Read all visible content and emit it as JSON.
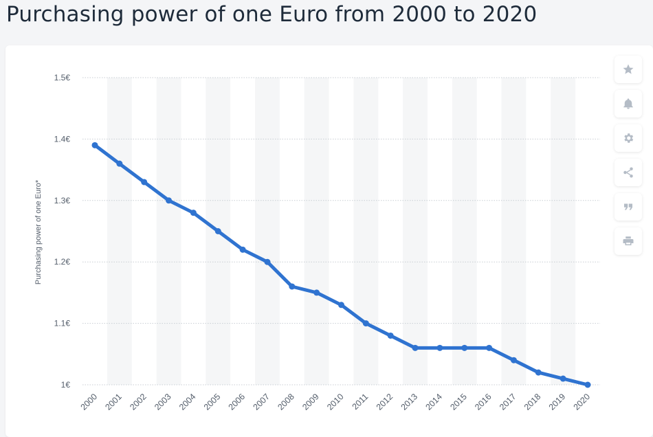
{
  "page": {
    "title": "Purchasing power of one Euro from 2000 to 2020"
  },
  "toolbar": {
    "buttons": [
      {
        "icon": "star-icon",
        "label": "Favorite"
      },
      {
        "icon": "bell-icon",
        "label": "Notification"
      },
      {
        "icon": "gear-icon",
        "label": "Settings"
      },
      {
        "icon": "share-icon",
        "label": "Share"
      },
      {
        "icon": "quote-icon",
        "label": "Cite"
      },
      {
        "icon": "print-icon",
        "label": "Print"
      }
    ]
  },
  "colors": {
    "line": "#2f73d0",
    "band": "#f5f6f7",
    "grid": "#c8cdd3"
  },
  "chart_data": {
    "type": "line",
    "title": "Purchasing power of one Euro from 2000 to 2020",
    "xlabel": "",
    "ylabel": "Purchasing power of one Euro*",
    "categories": [
      "2000",
      "2001",
      "2002",
      "2003",
      "2004",
      "2005",
      "2006",
      "2007",
      "2008",
      "2009",
      "2010",
      "2011",
      "2012",
      "2013",
      "2014",
      "2015",
      "2016",
      "2017",
      "2018",
      "2019",
      "2020"
    ],
    "series": [
      {
        "name": "Purchasing power of one Euro",
        "values": [
          1.39,
          1.36,
          1.33,
          1.3,
          1.28,
          1.25,
          1.22,
          1.2,
          1.16,
          1.15,
          1.13,
          1.1,
          1.08,
          1.06,
          1.06,
          1.06,
          1.06,
          1.04,
          1.02,
          1.01,
          1.0
        ]
      }
    ],
    "ylim": [
      1.0,
      1.5
    ],
    "yticks": [
      1.0,
      1.1,
      1.2,
      1.3,
      1.4,
      1.5
    ],
    "ytick_labels": [
      "1€",
      "1.1€",
      "1.2€",
      "1.3€",
      "1.4€",
      "1.5€"
    ],
    "grid": true,
    "legend": "none"
  }
}
